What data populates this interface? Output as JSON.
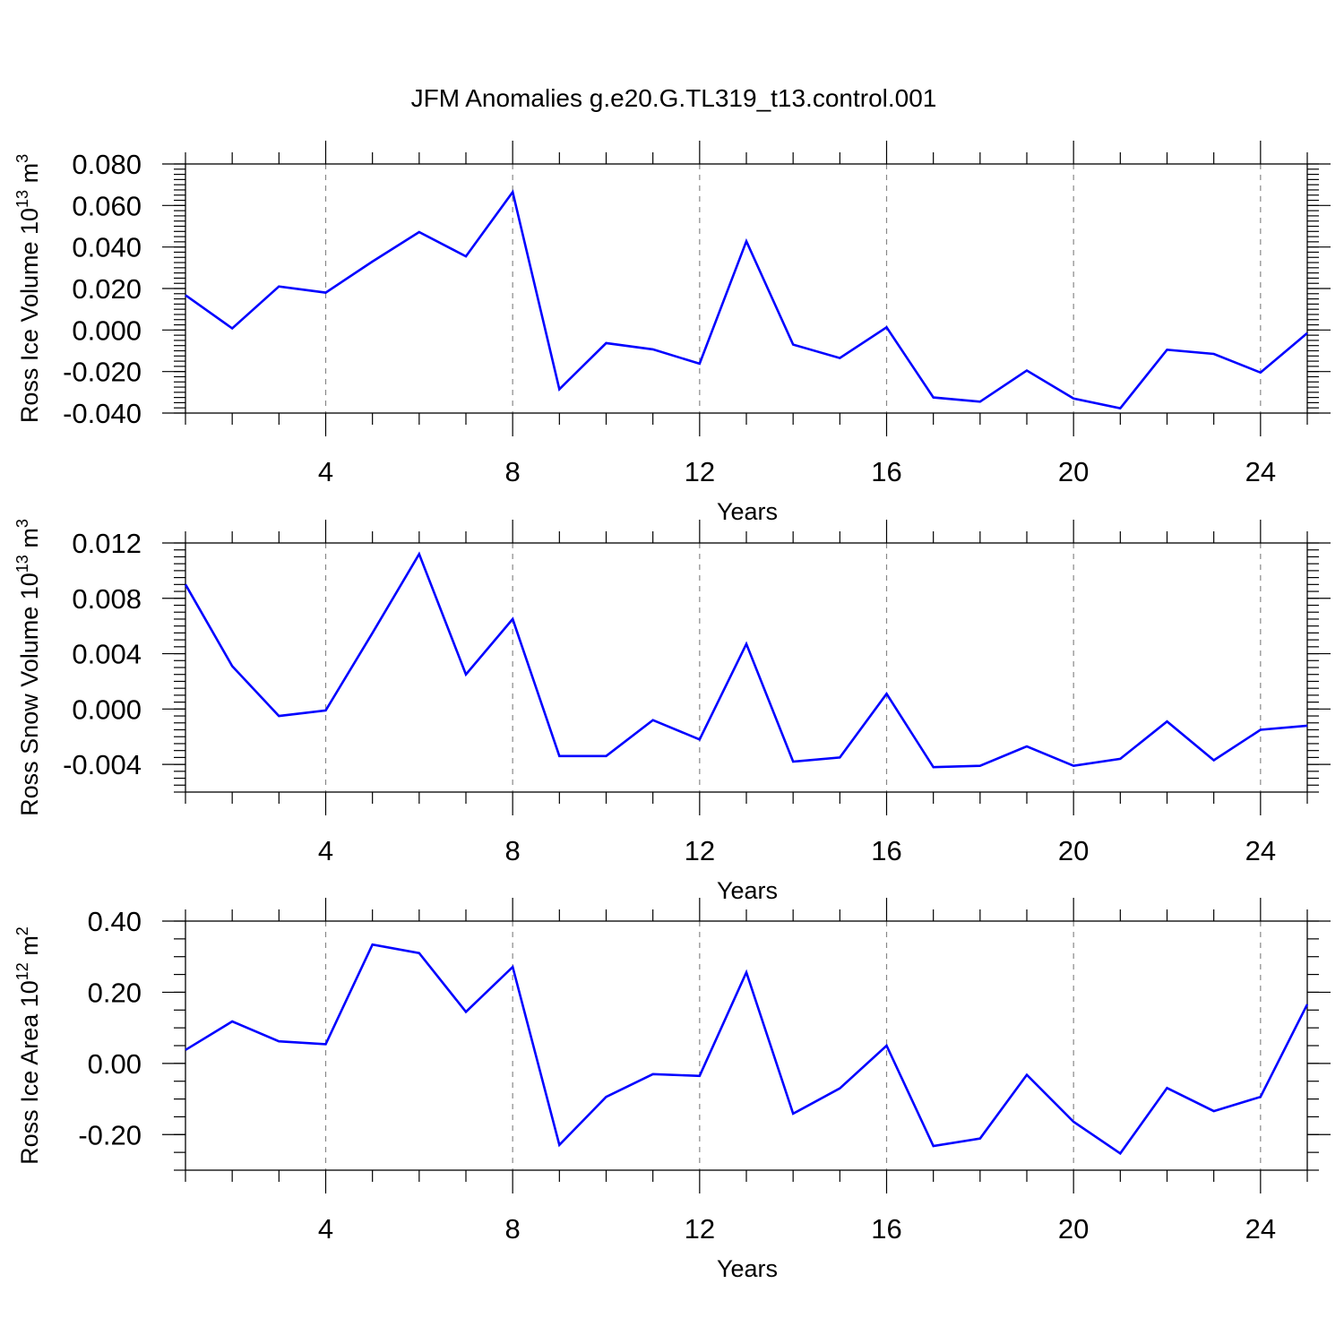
{
  "title": "JFM Anomalies g.e20.G.TL319_t13.control.001",
  "series_color": "#0000ff",
  "grid": "vertical dashed at major x ticks",
  "chart_data": [
    {
      "type": "line",
      "ylabel_main": "Ross Ice Volume 10",
      "ylabel_sup": "13",
      "ylabel_unit": " m",
      "ylabel_unit_sup": "3",
      "xlabel": "Years",
      "xlim": [
        1,
        25
      ],
      "ylim": [
        -0.04,
        0.08
      ],
      "x_ticks": [
        4,
        8,
        12,
        16,
        20,
        24
      ],
      "x_tick_labels": [
        "4",
        "8",
        "12",
        "16",
        "20",
        "24"
      ],
      "y_ticks": [
        -0.04,
        -0.02,
        0.0,
        0.02,
        0.04,
        0.06,
        0.08
      ],
      "y_tick_labels": [
        "-0.040",
        "-0.020",
        "0.000",
        "0.020",
        "0.040",
        "0.060",
        "0.080"
      ],
      "x": [
        1,
        2,
        3,
        4,
        5,
        6,
        7,
        8,
        9,
        10,
        11,
        12,
        13,
        14,
        15,
        16,
        17,
        18,
        19,
        20,
        21,
        22,
        23,
        24,
        25
      ],
      "values": [
        0.0168,
        0.0008,
        0.021,
        0.018,
        0.033,
        0.0472,
        0.0355,
        0.0665,
        -0.0285,
        -0.0063,
        -0.0093,
        -0.0162,
        0.0428,
        -0.007,
        -0.0135,
        0.0013,
        -0.0325,
        -0.0345,
        -0.0195,
        -0.033,
        -0.0377,
        -0.0095,
        -0.0115,
        -0.0205,
        -0.0015
      ]
    },
    {
      "type": "line",
      "ylabel_main": "Ross Snow Volume 10",
      "ylabel_sup": "13",
      "ylabel_unit": " m",
      "ylabel_unit_sup": "3",
      "xlabel": "Years",
      "xlim": [
        1,
        25
      ],
      "ylim": [
        -0.006,
        0.012
      ],
      "x_ticks": [
        4,
        8,
        12,
        16,
        20,
        24
      ],
      "x_tick_labels": [
        "4",
        "8",
        "12",
        "16",
        "20",
        "24"
      ],
      "y_ticks": [
        -0.004,
        0.0,
        0.004,
        0.008,
        0.012
      ],
      "y_tick_labels": [
        "-0.004",
        "0.000",
        "0.004",
        "0.008",
        "0.012"
      ],
      "x": [
        1,
        2,
        3,
        4,
        5,
        6,
        7,
        8,
        9,
        10,
        11,
        12,
        13,
        14,
        15,
        16,
        17,
        18,
        19,
        20,
        21,
        22,
        23,
        24,
        25
      ],
      "values": [
        0.009,
        0.0031,
        -0.0005,
        -0.0001,
        0.0055,
        0.0112,
        0.0025,
        0.0065,
        -0.0034,
        -0.0034,
        -0.0008,
        -0.0022,
        0.0047,
        -0.0038,
        -0.0035,
        0.0011,
        -0.0042,
        -0.0041,
        -0.0027,
        -0.0041,
        -0.0036,
        -0.0009,
        -0.0037,
        -0.0015,
        -0.0012
      ]
    },
    {
      "type": "line",
      "ylabel_main": "Ross Ice Area 10",
      "ylabel_sup": "12",
      "ylabel_unit": " m",
      "ylabel_unit_sup": "2",
      "xlabel": "Years",
      "xlim": [
        1,
        25
      ],
      "ylim": [
        -0.3,
        0.4
      ],
      "x_ticks": [
        4,
        8,
        12,
        16,
        20,
        24
      ],
      "x_tick_labels": [
        "4",
        "8",
        "12",
        "16",
        "20",
        "24"
      ],
      "y_ticks": [
        -0.2,
        0.0,
        0.2,
        0.4
      ],
      "y_tick_labels": [
        "-0.20",
        "0.00",
        "0.20",
        "0.40"
      ],
      "x": [
        1,
        2,
        3,
        4,
        5,
        6,
        7,
        8,
        9,
        10,
        11,
        12,
        13,
        14,
        15,
        16,
        17,
        18,
        19,
        20,
        21,
        22,
        23,
        24,
        25
      ],
      "values": [
        0.038,
        0.118,
        0.062,
        0.054,
        0.334,
        0.31,
        0.145,
        0.271,
        -0.229,
        -0.094,
        -0.03,
        -0.035,
        0.256,
        -0.141,
        -0.07,
        0.05,
        -0.232,
        -0.211,
        -0.032,
        -0.164,
        -0.253,
        -0.069,
        -0.134,
        -0.094,
        0.166
      ]
    }
  ]
}
